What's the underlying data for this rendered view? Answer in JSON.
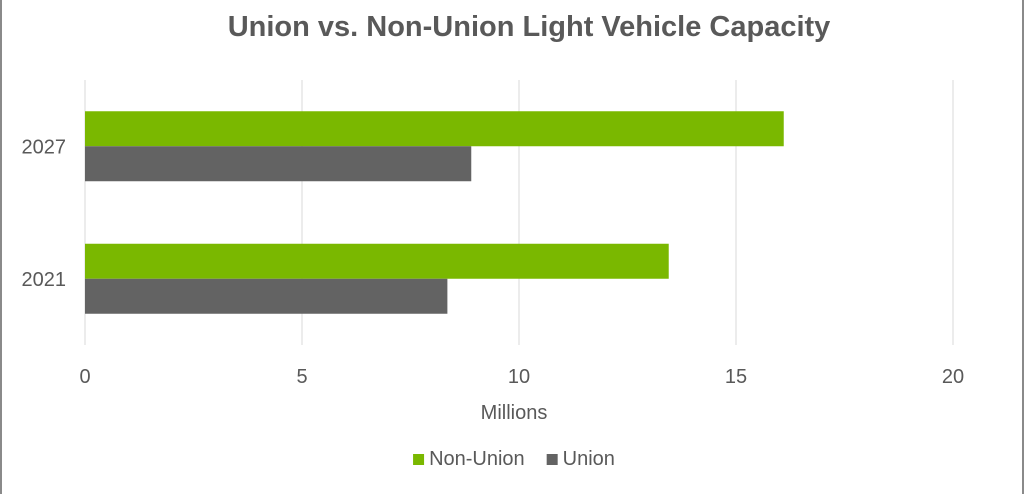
{
  "chart_data": {
    "type": "bar",
    "orientation": "horizontal",
    "title": "Union vs. Non-Union Light Vehicle Capacity",
    "xlabel": "Millions",
    "ylabel": "",
    "categories": [
      "2027",
      "2021"
    ],
    "series": [
      {
        "name": "Non-Union",
        "color": "#7ab800",
        "values": [
          16.1,
          13.45
        ]
      },
      {
        "name": "Union",
        "color": "#636363",
        "values": [
          8.9,
          8.35
        ]
      }
    ],
    "xlim": [
      0,
      20
    ],
    "xticks": [
      "0",
      "5",
      "10",
      "15",
      "20"
    ],
    "grid": true,
    "legend": "bottom"
  }
}
